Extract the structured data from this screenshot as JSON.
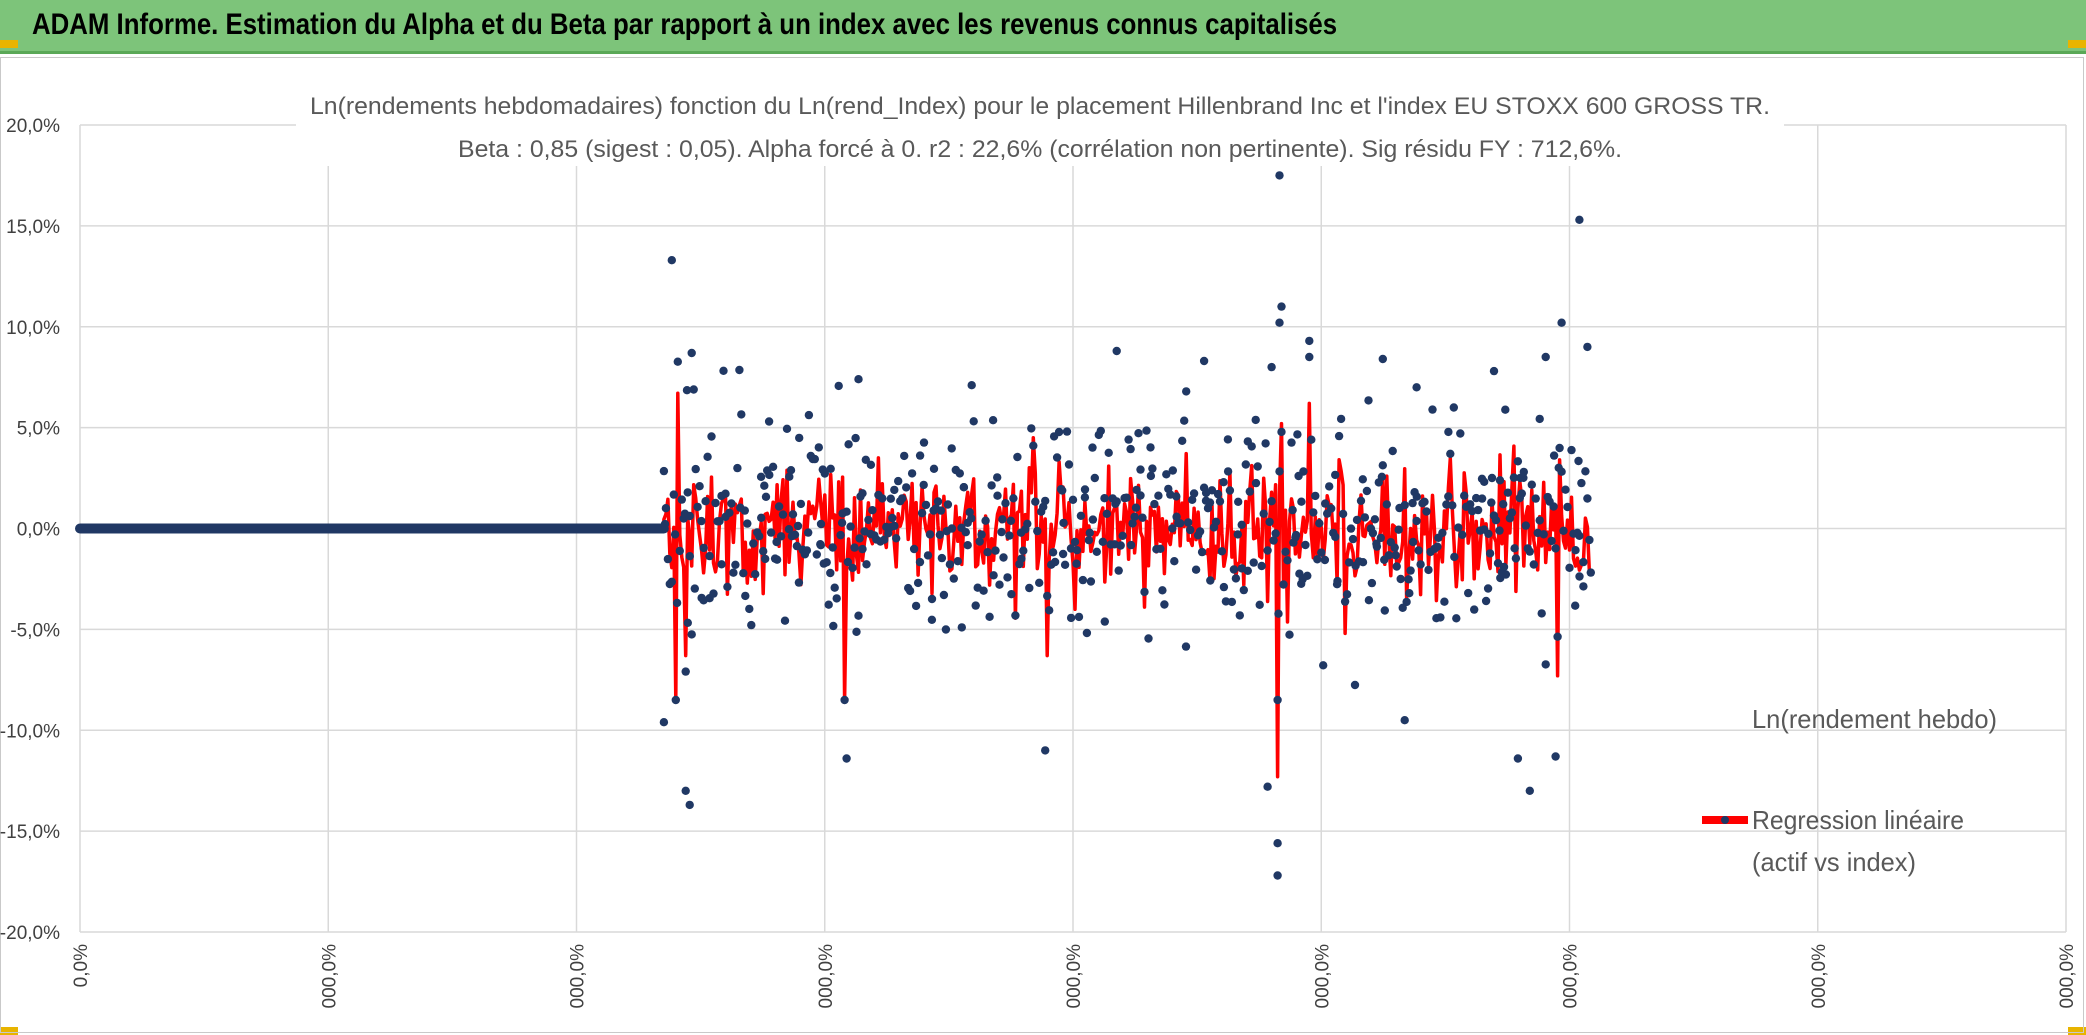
{
  "header": {
    "title": "ADAM Informe. Estimation du Alpha et du Beta par rapport à un index avec les revenus connus capitalisés",
    "background_color": "#7dc47a",
    "corner_color": "#e8b400"
  },
  "chart_data": {
    "type": "scatter",
    "title_line1": "Ln(rendements hebdomadaires) fonction du Ln(rend_Index) pour le placement Hillenbrand Inc et l'index EU STOXX 600 GROSS TR.",
    "title_line2": "Beta : 0,85 (sigest : 0,05). Alpha forcé à 0. r2 : 22,6% (corrélation non pertinente). Sig résidu FY : 712,6%.",
    "ylim": [
      -20,
      20
    ],
    "y_ticks": [
      20,
      15,
      10,
      5,
      0,
      -5,
      -10,
      -15,
      -20
    ],
    "y_tick_labels": [
      "20,0%",
      "15,0%",
      "10,0%",
      "5,0%",
      "0,0%",
      "-5,0%",
      "-10,0%",
      "-15,0%",
      "-20,0%"
    ],
    "x_tick_labels": [
      "0,0%",
      "000,0%",
      "000,0%",
      "000,0%",
      "000,0%",
      "000,0%",
      "000,0%",
      "000,0%",
      "000,0%"
    ],
    "beta": 0.85,
    "n_points": 1000,
    "flat_until_index": 294,
    "series": [
      {
        "name": "Ln(rendement hebdo)",
        "kind": "scatter",
        "color": "#203864"
      },
      {
        "name": "Regression linéaire (actif vs index)",
        "kind": "line",
        "color": "#ff0000"
      }
    ],
    "legend": {
      "entry1": "Ln(rendement hebdo)",
      "entry2_line1": "Regression linéaire",
      "entry2_line2": "(actif vs index)",
      "position": "right"
    },
    "notable_points": [
      {
        "i": 298,
        "y": 13.3
      },
      {
        "i": 308,
        "y": 8.7
      },
      {
        "i": 305,
        "y": -13.0
      },
      {
        "i": 307,
        "y": -13.7
      },
      {
        "i": 294,
        "y": -9.6
      },
      {
        "i": 392,
        "y": 7.4
      },
      {
        "i": 386,
        "y": -11.4
      },
      {
        "i": 522,
        "y": 8.8
      },
      {
        "i": 486,
        "y": -11.0
      },
      {
        "i": 566,
        "y": 8.3
      },
      {
        "i": 600,
        "y": 8.0
      },
      {
        "i": 598,
        "y": -12.8
      },
      {
        "i": 604,
        "y": 17.5
      },
      {
        "i": 604,
        "y": 10.2
      },
      {
        "i": 605,
        "y": 11.0
      },
      {
        "i": 603,
        "y": -15.6
      },
      {
        "i": 603,
        "y": -17.2
      },
      {
        "i": 619,
        "y": 9.3
      },
      {
        "i": 656,
        "y": 8.4
      },
      {
        "i": 667,
        "y": -9.5
      },
      {
        "i": 673,
        "y": 7.0
      },
      {
        "i": 712,
        "y": 7.8
      },
      {
        "i": 738,
        "y": 8.5
      },
      {
        "i": 746,
        "y": 10.2
      },
      {
        "i": 755,
        "y": 15.3
      },
      {
        "i": 759,
        "y": 9.0
      },
      {
        "i": 730,
        "y": -13.0
      },
      {
        "i": 743,
        "y": -11.3
      },
      {
        "i": 724,
        "y": -11.4
      }
    ],
    "notable_regression": [
      {
        "i": 300,
        "y": -8.5
      },
      {
        "i": 301,
        "y": 6.7
      },
      {
        "i": 305,
        "y": -6.3
      },
      {
        "i": 385,
        "y": -8.5
      },
      {
        "i": 402,
        "y": 3.5
      },
      {
        "i": 480,
        "y": 4.5
      },
      {
        "i": 487,
        "y": -6.3
      },
      {
        "i": 603,
        "y": -12.3
      },
      {
        "i": 605,
        "y": 5.2
      },
      {
        "i": 619,
        "y": 6.2
      },
      {
        "i": 637,
        "y": -5.2
      },
      {
        "i": 744,
        "y": -7.3
      },
      {
        "i": 745,
        "y": 3.4
      }
    ]
  }
}
